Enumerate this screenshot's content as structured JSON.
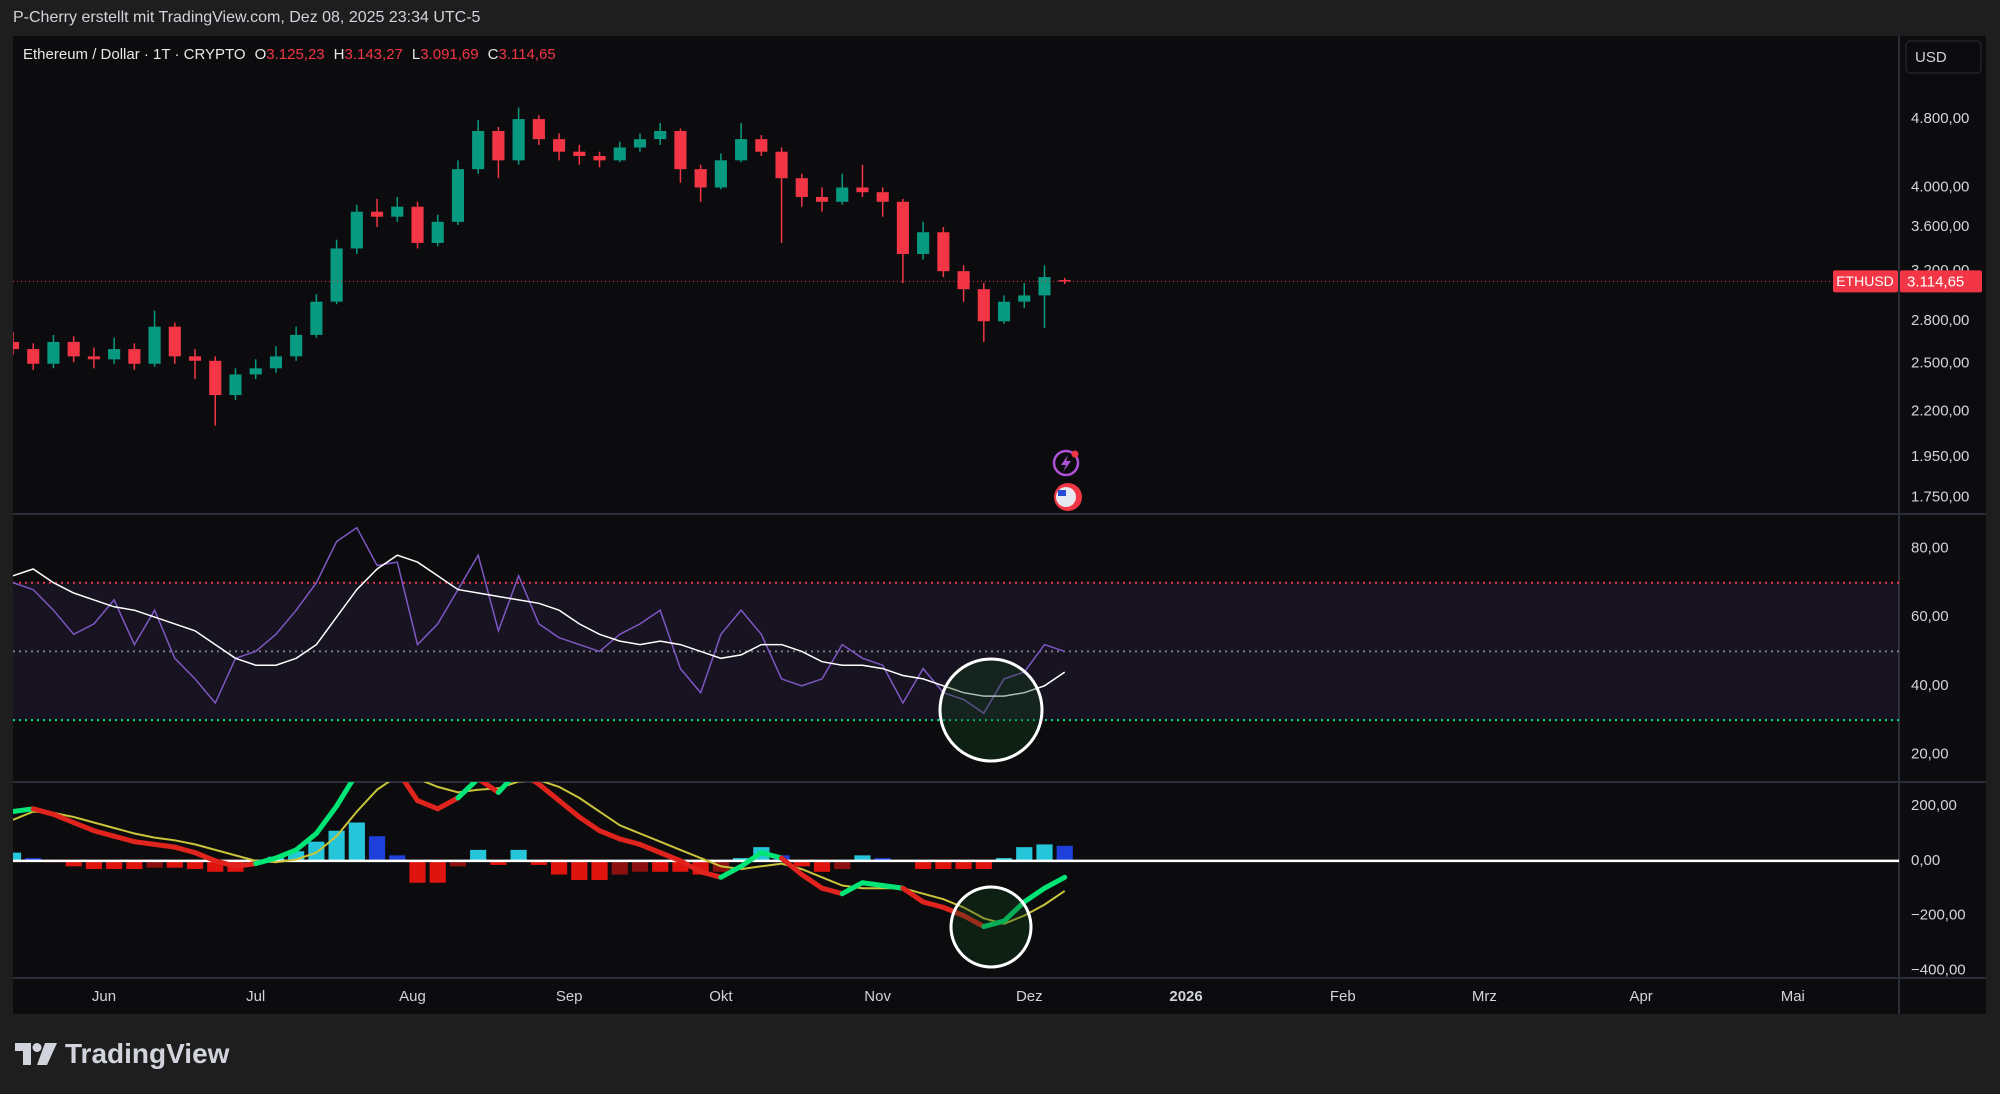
{
  "header": {
    "text": "P-Cherry erstellt mit TradingView.com, Dez 08, 2025 23:34 UTC-5"
  },
  "footer": {
    "brand": "TradingView"
  },
  "chart_data": [
    {
      "type": "candlestick",
      "title": "Ethereum / Dollar · 1T · CRYPTO",
      "currency": "USD",
      "ohlc_legend": [
        {
          "name": "O",
          "value": 3125.23,
          "label": "3.125,23"
        },
        {
          "name": "H",
          "value": 3143.27,
          "label": "3.143,27"
        },
        {
          "name": "L",
          "value": 3091.69,
          "label": "3.091,69"
        },
        {
          "name": "C",
          "value": 3114.65,
          "label": "3.114,65"
        }
      ],
      "x": [
        "2025-05-14",
        "2025-05-18",
        "2025-05-22",
        "2025-05-26",
        "2025-05-30",
        "2025-06-03",
        "2025-06-07",
        "2025-06-11",
        "2025-06-15",
        "2025-06-19",
        "2025-06-23",
        "2025-06-27",
        "2025-07-01",
        "2025-07-05",
        "2025-07-09",
        "2025-07-13",
        "2025-07-17",
        "2025-07-21",
        "2025-07-25",
        "2025-07-29",
        "2025-08-02",
        "2025-08-06",
        "2025-08-10",
        "2025-08-14",
        "2025-08-18",
        "2025-08-22",
        "2025-08-26",
        "2025-08-30",
        "2025-09-03",
        "2025-09-07",
        "2025-09-11",
        "2025-09-15",
        "2025-09-19",
        "2025-09-23",
        "2025-09-27",
        "2025-10-01",
        "2025-10-05",
        "2025-10-09",
        "2025-10-13",
        "2025-10-17",
        "2025-10-21",
        "2025-10-25",
        "2025-10-29",
        "2025-11-02",
        "2025-11-06",
        "2025-11-10",
        "2025-11-14",
        "2025-11-18",
        "2025-11-22",
        "2025-11-26",
        "2025-11-30",
        "2025-12-04",
        "2025-12-08"
      ],
      "open": [
        2650,
        2600,
        2500,
        2650,
        2550,
        2530,
        2600,
        2500,
        2760,
        2550,
        2520,
        2300,
        2430,
        2470,
        2550,
        2700,
        2950,
        3400,
        3750,
        3700,
        3800,
        3450,
        3650,
        4200,
        4650,
        4300,
        4800,
        4550,
        4400,
        4350,
        4300,
        4450,
        4550,
        4650,
        4200,
        4000,
        4300,
        4550,
        4400,
        4100,
        3900,
        3850,
        4000,
        3950,
        3850,
        3350,
        3550,
        3200,
        3050,
        2800,
        2950,
        3000,
        3125.23
      ],
      "high": [
        2720,
        2640,
        2700,
        2690,
        2610,
        2680,
        2640,
        2880,
        2790,
        2600,
        2550,
        2470,
        2530,
        2620,
        2760,
        3010,
        3480,
        3820,
        3880,
        3900,
        3850,
        3720,
        4300,
        4790,
        4700,
        4950,
        4850,
        4620,
        4480,
        4400,
        4520,
        4620,
        4750,
        4680,
        4250,
        4380,
        4750,
        4600,
        4450,
        4150,
        4000,
        4150,
        4250,
        4000,
        3880,
        3650,
        3600,
        3250,
        3100,
        3000,
        3100,
        3250,
        3143.27
      ],
      "low": [
        2560,
        2460,
        2470,
        2510,
        2470,
        2500,
        2460,
        2480,
        2500,
        2400,
        2120,
        2270,
        2400,
        2440,
        2520,
        2680,
        2930,
        3350,
        3600,
        3650,
        3400,
        3420,
        3620,
        4150,
        4100,
        4250,
        4480,
        4300,
        4250,
        4220,
        4280,
        4400,
        4480,
        4050,
        3850,
        3980,
        4280,
        4350,
        3450,
        3800,
        3750,
        3820,
        3900,
        3700,
        3100,
        3300,
        3150,
        2950,
        2650,
        2780,
        2900,
        2750,
        3091.69
      ],
      "close": [
        2600,
        2500,
        2650,
        2550,
        2530,
        2600,
        2500,
        2760,
        2550,
        2520,
        2300,
        2430,
        2470,
        2550,
        2700,
        2950,
        3400,
        3750,
        3700,
        3800,
        3450,
        3650,
        4200,
        4650,
        4300,
        4800,
        4550,
        4400,
        4350,
        4300,
        4450,
        4550,
        4650,
        4200,
        4000,
        4300,
        4550,
        4400,
        4100,
        3900,
        3850,
        4000,
        3950,
        3850,
        3350,
        3550,
        3200,
        3050,
        2800,
        2950,
        3000,
        3150,
        3114.65
      ],
      "up_color": "#089981",
      "down_color": "#f23645",
      "log_scale": true,
      "ylim": [
        1675,
        5990
      ],
      "yticks": [
        {
          "value": 4800,
          "label": "4.800,00"
        },
        {
          "value": 4000,
          "label": "4.000,00"
        },
        {
          "value": 3600,
          "label": "3.600,00"
        },
        {
          "value": 3200,
          "label": "3.200,00"
        },
        {
          "value": 2800,
          "label": "2.800,00"
        },
        {
          "value": 2500,
          "label": "2.500,00"
        },
        {
          "value": 2200,
          "label": "2.200,00"
        },
        {
          "value": 1950,
          "label": "1.950,00"
        },
        {
          "value": 1750,
          "label": "1.750,00"
        }
      ],
      "price_tag": {
        "symbol": "ETHUSD",
        "price": {
          "value": 3114.65,
          "label": "3.114,65"
        }
      },
      "xlim": [
        "2025-05-14",
        "2026-05-22"
      ],
      "xticks": [
        {
          "value": "2025-06-01",
          "label": "Jun"
        },
        {
          "value": "2025-07-01",
          "label": "Jul"
        },
        {
          "value": "2025-08-01",
          "label": "Aug"
        },
        {
          "value": "2025-09-01",
          "label": "Sep"
        },
        {
          "value": "2025-10-01",
          "label": "Okt"
        },
        {
          "value": "2025-11-01",
          "label": "Nov"
        },
        {
          "value": "2025-12-01",
          "label": "Dez"
        },
        {
          "value": "2026-01-01",
          "label": "2026"
        },
        {
          "value": "2026-02-01",
          "label": "Feb"
        },
        {
          "value": "2026-03-01",
          "label": "Mrz"
        },
        {
          "value": "2026-04-01",
          "label": "Apr"
        },
        {
          "value": "2026-05-01",
          "label": "Mai"
        }
      ],
      "grid": false
    },
    {
      "type": "line",
      "x": [
        "2025-05-14",
        "2025-05-18",
        "2025-05-22",
        "2025-05-26",
        "2025-05-30",
        "2025-06-03",
        "2025-06-07",
        "2025-06-11",
        "2025-06-15",
        "2025-06-19",
        "2025-06-23",
        "2025-06-27",
        "2025-07-01",
        "2025-07-05",
        "2025-07-09",
        "2025-07-13",
        "2025-07-17",
        "2025-07-21",
        "2025-07-25",
        "2025-07-29",
        "2025-08-02",
        "2025-08-06",
        "2025-08-10",
        "2025-08-14",
        "2025-08-18",
        "2025-08-22",
        "2025-08-26",
        "2025-08-30",
        "2025-09-03",
        "2025-09-07",
        "2025-09-11",
        "2025-09-15",
        "2025-09-19",
        "2025-09-23",
        "2025-09-27",
        "2025-10-01",
        "2025-10-05",
        "2025-10-09",
        "2025-10-13",
        "2025-10-17",
        "2025-10-21",
        "2025-10-25",
        "2025-10-29",
        "2025-11-02",
        "2025-11-06",
        "2025-11-10",
        "2025-11-14",
        "2025-11-18",
        "2025-11-22",
        "2025-11-26",
        "2025-11-30",
        "2025-12-04",
        "2025-12-08"
      ],
      "series": [
        {
          "color": "#7e57c2",
          "width": 1.5,
          "values": [
            70,
            68,
            62,
            55,
            58,
            65,
            52,
            62,
            48,
            42,
            35,
            48,
            50,
            55,
            62,
            70,
            82,
            86,
            75,
            76,
            52,
            58,
            68,
            78,
            56,
            72,
            58,
            54,
            52,
            50,
            55,
            58,
            62,
            45,
            38,
            55,
            62,
            55,
            42,
            40,
            42,
            52,
            48,
            46,
            35,
            45,
            38,
            36,
            32,
            42,
            44,
            52,
            50
          ]
        },
        {
          "color": "#ffffff",
          "width": 1.5,
          "values": [
            72,
            74,
            70,
            67,
            65,
            63,
            62,
            60,
            58,
            56,
            52,
            48,
            46,
            46,
            48,
            52,
            60,
            68,
            74,
            78,
            76,
            72,
            68,
            67,
            66,
            65,
            64,
            62,
            58,
            55,
            53,
            52,
            53,
            52,
            50,
            48,
            49,
            52,
            52,
            50,
            47,
            46,
            46,
            45,
            43,
            42,
            40,
            38,
            37,
            37,
            38,
            40,
            44
          ]
        }
      ],
      "levels": [
        {
          "value": 70,
          "color": "#f23645"
        },
        {
          "value": 50,
          "color": "#787b86"
        },
        {
          "value": 30,
          "color": "#00e676"
        }
      ],
      "band_color": "rgba(126,87,194,0.10)",
      "ylim": [
        12,
        90
      ],
      "yticks": [
        {
          "value": 80,
          "label": "80,00"
        },
        {
          "value": 60,
          "label": "60,00"
        },
        {
          "value": 40,
          "label": "40,00"
        },
        {
          "value": 20,
          "label": "20,00"
        }
      ]
    },
    {
      "type": "macd",
      "x": [
        "2025-05-14",
        "2025-05-18",
        "2025-05-22",
        "2025-05-26",
        "2025-05-30",
        "2025-06-03",
        "2025-06-07",
        "2025-06-11",
        "2025-06-15",
        "2025-06-19",
        "2025-06-23",
        "2025-06-27",
        "2025-07-01",
        "2025-07-05",
        "2025-07-09",
        "2025-07-13",
        "2025-07-17",
        "2025-07-21",
        "2025-07-25",
        "2025-07-29",
        "2025-08-02",
        "2025-08-06",
        "2025-08-10",
        "2025-08-14",
        "2025-08-18",
        "2025-08-22",
        "2025-08-26",
        "2025-08-30",
        "2025-09-03",
        "2025-09-07",
        "2025-09-11",
        "2025-09-15",
        "2025-09-19",
        "2025-09-23",
        "2025-09-27",
        "2025-10-01",
        "2025-10-05",
        "2025-10-09",
        "2025-10-13",
        "2025-10-17",
        "2025-10-21",
        "2025-10-25",
        "2025-10-29",
        "2025-11-02",
        "2025-11-06",
        "2025-11-10",
        "2025-11-14",
        "2025-11-18",
        "2025-11-22",
        "2025-11-26",
        "2025-11-30",
        "2025-12-04",
        "2025-12-08"
      ],
      "series": [
        {
          "color_up": "#00e676",
          "color_down": "#e0231c",
          "width": 5,
          "values": [
            180,
            190,
            170,
            140,
            110,
            90,
            70,
            60,
            50,
            30,
            0,
            -20,
            -10,
            10,
            40,
            100,
            200,
            320,
            350,
            330,
            220,
            190,
            230,
            300,
            250,
            330,
            280,
            220,
            160,
            110,
            80,
            60,
            30,
            0,
            -40,
            -60,
            -20,
            30,
            10,
            -50,
            -100,
            -120,
            -80,
            -90,
            -100,
            -150,
            -170,
            -200,
            -240,
            -220,
            -150,
            -100,
            -60
          ]
        },
        {
          "color": "#c9c43a",
          "width": 2,
          "values": [
            150,
            180,
            175,
            160,
            140,
            120,
            100,
            85,
            75,
            60,
            40,
            20,
            0,
            -5,
            5,
            30,
            90,
            180,
            260,
            310,
            300,
            270,
            250,
            260,
            265,
            290,
            295,
            270,
            230,
            180,
            130,
            100,
            70,
            40,
            10,
            -20,
            -30,
            -20,
            -10,
            -30,
            -60,
            -90,
            -100,
            -100,
            -100,
            -120,
            -140,
            -170,
            -210,
            -230,
            -200,
            -160,
            -110
          ]
        }
      ],
      "histogram": {
        "values": [
          30,
          10,
          -5,
          -20,
          -30,
          -30,
          -30,
          -25,
          -25,
          -30,
          -40,
          -40,
          -10,
          15,
          35,
          70,
          110,
          140,
          90,
          20,
          -80,
          -80,
          -20,
          40,
          -15,
          40,
          -15,
          -50,
          -70,
          -70,
          -50,
          -40,
          -40,
          -40,
          -50,
          -40,
          10,
          50,
          20,
          -20,
          -40,
          -30,
          20,
          10,
          0,
          -30,
          -30,
          -30,
          -30,
          10,
          50,
          60,
          55
        ],
        "colors": {
          "pos_up": "#26c6da",
          "pos_down": "#1e3fd9",
          "neg_down": "#e0140f",
          "neg_up": "#8c1010"
        }
      },
      "levels": [
        {
          "value": 0,
          "color": "#ffffff"
        }
      ],
      "ylim": [
        -428,
        288
      ],
      "yticks": [
        {
          "value": 200,
          "label": "200,00"
        },
        {
          "value": 0,
          "label": "0,00"
        },
        {
          "value": -200,
          "label": "−200,00"
        },
        {
          "value": -400,
          "label": "−400,00"
        }
      ]
    }
  ]
}
